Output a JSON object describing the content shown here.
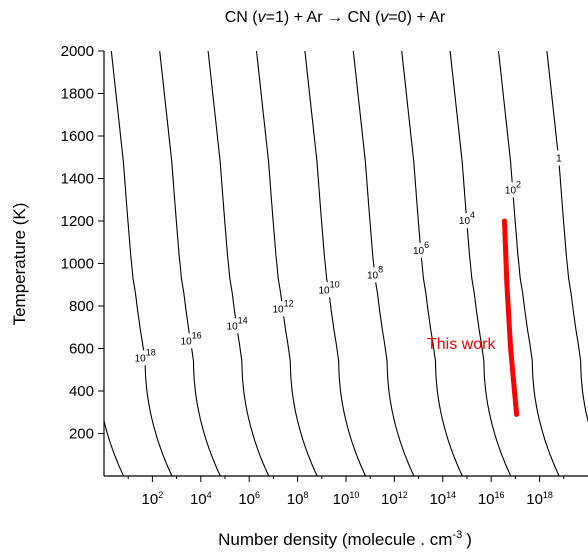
{
  "chart_data": {
    "type": "line",
    "title_parts": {
      "a": "CN (",
      "v1": "v",
      "b": "=1) + Ar → CN (",
      "v2": "v",
      "c": "=0) + Ar"
    },
    "xlabel": "Number density (molecule . cm",
    "xlabel_exp": "-3",
    "xlabel_close": ")",
    "ylabel": "Temperature (K)",
    "x_scale": "log",
    "xlim": [
      1,
      1e+20
    ],
    "ylim": [
      0,
      2000
    ],
    "x_ticks": [
      {
        "base": "10",
        "exp": "2",
        "log": 2
      },
      {
        "base": "10",
        "exp": "4",
        "log": 4
      },
      {
        "base": "10",
        "exp": "6",
        "log": 6
      },
      {
        "base": "10",
        "exp": "8",
        "log": 8
      },
      {
        "base": "10",
        "exp": "10",
        "log": 10
      },
      {
        "base": "10",
        "exp": "12",
        "log": 12
      },
      {
        "base": "10",
        "exp": "14",
        "log": 14
      },
      {
        "base": "10",
        "exp": "16",
        "log": 16
      },
      {
        "base": "10",
        "exp": "18",
        "log": 18
      }
    ],
    "y_ticks": [
      200,
      400,
      600,
      800,
      1000,
      1200,
      1400,
      1600,
      1800,
      2000
    ],
    "contours": {
      "count": 21,
      "label_shift_decades": [
        0,
        2,
        4,
        6,
        8,
        10,
        12,
        14,
        16,
        18
      ],
      "labels": [
        {
          "base": "1",
          "exp": "",
          "log_n": 18.8,
          "t": 1480
        },
        {
          "base": "10",
          "exp": "2",
          "log_n": 16.9,
          "t": 1330
        },
        {
          "base": "10",
          "exp": "4",
          "log_n": 15.0,
          "t": 1185
        },
        {
          "base": "10",
          "exp": "6",
          "log_n": 13.1,
          "t": 1045
        },
        {
          "base": "10",
          "exp": "8",
          "log_n": 11.2,
          "t": 930
        },
        {
          "base": "10",
          "exp": "10",
          "log_n": 9.3,
          "t": 860
        },
        {
          "base": "10",
          "exp": "12",
          "log_n": 7.4,
          "t": 770
        },
        {
          "base": "10",
          "exp": "14",
          "log_n": 5.5,
          "t": 690
        },
        {
          "base": "10",
          "exp": "16",
          "log_n": 3.6,
          "t": 620
        },
        {
          "base": "10",
          "exp": "18",
          "log_n": 1.7,
          "t": 540
        }
      ]
    },
    "this_work": {
      "label": "This work",
      "color": "#ff0000",
      "points": [
        {
          "log_n": 16.55,
          "t": 1200
        },
        {
          "log_n": 16.65,
          "t": 900
        },
        {
          "log_n": 16.8,
          "t": 600
        },
        {
          "log_n": 17.05,
          "t": 290
        }
      ]
    },
    "grid": false,
    "legend": "none"
  }
}
